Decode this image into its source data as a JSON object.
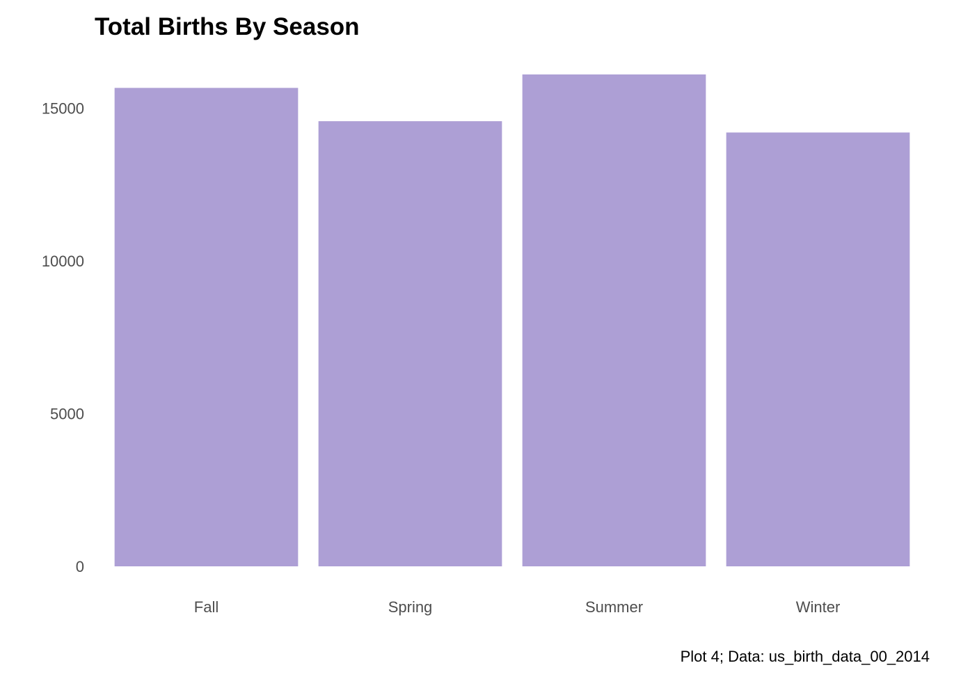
{
  "chart_data": {
    "type": "bar",
    "title": "Total Births By Season",
    "xlabel": "",
    "ylabel": "",
    "categories": [
      "Fall",
      "Spring",
      "Summer",
      "Winter"
    ],
    "values": [
      15660,
      14570,
      16100,
      14200
    ],
    "ylim": [
      0,
      16100
    ],
    "yticks": [
      0,
      5000,
      10000,
      15000
    ],
    "ytick_labels": [
      "0",
      "5000",
      "10000",
      "15000"
    ],
    "grid": false,
    "legend": "none",
    "caption": "Plot 4; Data: us_birth_data_00_2014",
    "colors": {
      "bar": "#ad9fd5",
      "tick_text": "#4d4d4d",
      "title_text": "#000000",
      "background": "#ffffff"
    }
  }
}
